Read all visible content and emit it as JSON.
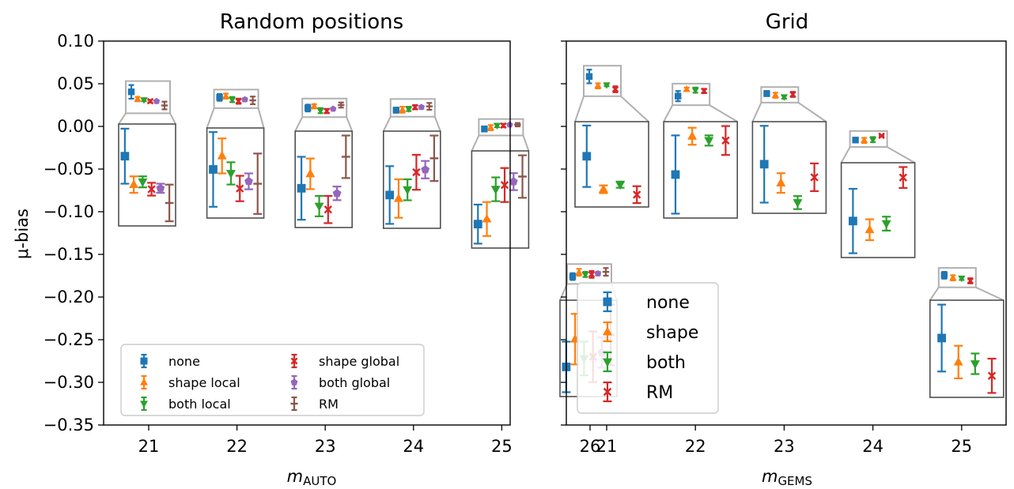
{
  "ylabel": "μ-bias",
  "colors": {
    "none": "#1f77b4",
    "shape": "#ff7f0e",
    "both": "#2ca02c",
    "shape global": "#d62728",
    "both global": "#9467bd",
    "RM": "#8c564b"
  },
  "chart_data": [
    {
      "type": "scatter",
      "title": "Random positions",
      "xlabel_main": "m",
      "xlabel_sub": "AUTO",
      "xlabel": "m_AUTO",
      "ylabel": "μ-bias",
      "categories": [
        "21",
        "22",
        "23",
        "24",
        "25",
        "26"
      ],
      "ylim": [
        -0.35,
        0.1
      ],
      "yticks": [
        "0.10",
        "0.05",
        "0.00",
        "−0.05",
        "−0.10",
        "−0.15",
        "−0.20",
        "−0.25",
        "−0.30",
        "−0.35"
      ],
      "legend_position": "lower-left",
      "series": [
        {
          "name": "none",
          "marker": "square",
          "color": "#1f77b4",
          "values": [
            0.0405,
            0.034,
            0.0215,
            0.019,
            -0.003,
            -0.176
          ],
          "errors": [
            0.008,
            0.004,
            0.004,
            0.003,
            0.003,
            0.004
          ]
        },
        {
          "name": "shape local",
          "marker": "triangle-up",
          "color": "#ff7f0e",
          "values": [
            0.032,
            0.0355,
            0.0235,
            0.0195,
            -0.0015,
            -0.171
          ],
          "errors": [
            0.0025,
            0.003,
            0.0025,
            0.0035,
            0.003,
            0.004
          ]
        },
        {
          "name": "both local",
          "marker": "triangle-down",
          "color": "#2ca02c",
          "values": [
            0.031,
            0.0315,
            0.0185,
            0.0205,
            0.001,
            -0.1735
          ],
          "errors": [
            0.0015,
            0.003,
            0.003,
            0.0025,
            0.002,
            0.003
          ]
        },
        {
          "name": "shape global",
          "marker": "x",
          "color": "#d62728",
          "values": [
            0.0295,
            0.0295,
            0.018,
            0.0225,
            0.001,
            -0.1735
          ],
          "errors": [
            0.0015,
            0.003,
            0.0025,
            0.0025,
            0.002,
            0.004
          ]
        },
        {
          "name": "both global",
          "marker": "pentagon",
          "color": "#9467bd",
          "values": [
            0.0295,
            0.0315,
            0.0205,
            0.0225,
            0.002,
            -0.1725
          ],
          "errors": [
            0.001,
            0.0015,
            0.001,
            0.0015,
            0.001,
            0.002
          ]
        },
        {
          "name": "RM",
          "marker": "dash",
          "color": "#8c564b",
          "values": [
            0.0245,
            0.0305,
            0.025,
            0.0235,
            0.002,
            -0.1705
          ],
          "errors": [
            0.0045,
            0.0045,
            0.003,
            0.004,
            0.002,
            0.0045
          ]
        }
      ],
      "zoom_series": [
        {
          "name": "none",
          "values": [
            -0.04,
            -0.049,
            -0.073,
            -0.08,
            -0.114,
            -0.282
          ],
          "errors": [
            0.03,
            0.047,
            0.037,
            0.033,
            0.023,
            0.03
          ]
        },
        {
          "name": "shape local",
          "values": [
            -0.071,
            -0.032,
            -0.056,
            -0.084,
            -0.108,
            -0.249
          ],
          "errors": [
            0.009,
            0.022,
            0.018,
            0.022,
            0.02,
            0.03
          ]
        },
        {
          "name": "both local",
          "values": [
            -0.068,
            -0.054,
            -0.094,
            -0.074,
            -0.073,
            -0.272
          ],
          "errors": [
            0.006,
            0.014,
            0.012,
            0.012,
            0.014,
            0.02
          ]
        },
        {
          "name": "shape global",
          "values": [
            -0.076,
            -0.073,
            -0.098,
            -0.054,
            -0.068,
            -0.27
          ],
          "errors": [
            0.007,
            0.016,
            0.016,
            0.02,
            0.02,
            0.03
          ]
        },
        {
          "name": "both global",
          "values": [
            -0.075,
            -0.064,
            -0.079,
            -0.051,
            -0.064,
            -0.265
          ],
          "errors": [
            0.005,
            0.01,
            0.008,
            0.01,
            0.01,
            0.018
          ]
        },
        {
          "name": "RM",
          "values": [
            -0.091,
            -0.067,
            -0.036,
            -0.038,
            -0.058,
            -0.244
          ],
          "errors": [
            0.02,
            0.038,
            0.025,
            0.026,
            0.025,
            0.036
          ]
        }
      ],
      "legend": [
        "none",
        "shape local",
        "both local",
        "shape global",
        "both global",
        "RM"
      ]
    },
    {
      "type": "scatter",
      "title": "Grid",
      "xlabel_main": "m",
      "xlabel_sub": "GEMS",
      "xlabel": "m_GEMS",
      "categories": [
        "21",
        "22",
        "23",
        "24",
        "25"
      ],
      "ylim": [
        -0.35,
        0.1
      ],
      "legend_position": "lower-left",
      "series": [
        {
          "name": "none",
          "marker": "square",
          "color": "#1f77b4",
          "values": [
            0.0585,
            0.0355,
            0.0385,
            -0.016,
            -0.1745
          ],
          "errors": [
            0.008,
            0.006,
            0.003,
            0.002,
            0.004
          ]
        },
        {
          "name": "shape",
          "marker": "triangle-up",
          "color": "#ff7f0e",
          "values": [
            0.0475,
            0.0435,
            0.0365,
            -0.0165,
            -0.1775
          ],
          "errors": [
            0.003,
            0.002,
            0.003,
            0.003,
            0.003
          ]
        },
        {
          "name": "both",
          "marker": "triangle-down",
          "color": "#2ca02c",
          "values": [
            0.0485,
            0.0425,
            0.0345,
            -0.0155,
            -0.178
          ],
          "errors": [
            0.0015,
            0.003,
            0.002,
            0.003,
            0.002
          ]
        },
        {
          "name": "RM",
          "marker": "x",
          "color": "#d62728",
          "values": [
            0.0435,
            0.0415,
            0.0375,
            -0.011,
            -0.181
          ],
          "errors": [
            0.0035,
            0.0025,
            0.003,
            0.001,
            0.003
          ]
        }
      ],
      "zoom_series": [
        {
          "name": "none",
          "values": [
            -0.027,
            -0.055,
            -0.041,
            -0.112,
            -0.25
          ],
          "errors": [
            0.04,
            0.046,
            0.047,
            0.037,
            0.039
          ]
        },
        {
          "name": "shape",
          "values": [
            -0.07,
            -0.01,
            -0.064,
            -0.122,
            -0.278
          ],
          "errors": [
            0.005,
            0.01,
            0.012,
            0.012,
            0.019
          ]
        },
        {
          "name": "both",
          "values": [
            -0.064,
            -0.015,
            -0.088,
            -0.115,
            -0.28
          ],
          "errors": [
            0.004,
            0.006,
            0.008,
            0.008,
            0.012
          ]
        },
        {
          "name": "RM",
          "values": [
            -0.077,
            -0.015,
            -0.057,
            -0.062,
            -0.294
          ],
          "errors": [
            0.011,
            0.017,
            0.017,
            0.012,
            0.02
          ]
        }
      ],
      "legend": [
        "none",
        "shape",
        "both",
        "RM"
      ]
    }
  ]
}
